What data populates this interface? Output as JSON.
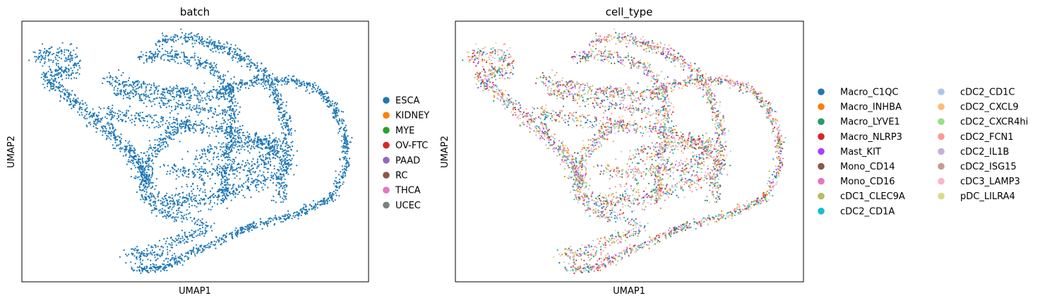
{
  "chart_data": [
    {
      "type": "scatter",
      "title": "batch",
      "xlabel": "UMAP1",
      "ylabel": "UMAP2",
      "grid": false,
      "ticks": false,
      "legend_position": "right",
      "legend": [
        {
          "label": "ESCA",
          "color": "#1f77b4"
        },
        {
          "label": "KIDNEY",
          "color": "#ff7f0e"
        },
        {
          "label": "MYE",
          "color": "#2ca02c"
        },
        {
          "label": "OV-FTC",
          "color": "#d62728"
        },
        {
          "label": "PAAD",
          "color": "#9467bd"
        },
        {
          "label": "RC",
          "color": "#8c564b"
        },
        {
          "label": "THCA",
          "color": "#e377c2"
        },
        {
          "label": "UCEC",
          "color": "#7f7f7f"
        }
      ],
      "visible_color": "#1f77b4"
    },
    {
      "type": "scatter",
      "title": "cell_type",
      "xlabel": "UMAP1",
      "ylabel": "UMAP2",
      "grid": false,
      "ticks": false,
      "legend_position": "right",
      "legend": [
        {
          "label": "Macro_C1QC",
          "color": "#1f77b4"
        },
        {
          "label": "Macro_INHBA",
          "color": "#ff7f0e"
        },
        {
          "label": "Macro_LYVE1",
          "color": "#279e68"
        },
        {
          "label": "Macro_NLRP3",
          "color": "#d62728"
        },
        {
          "label": "Mast_KIT",
          "color": "#aa40fc"
        },
        {
          "label": "Mono_CD14",
          "color": "#8c564b"
        },
        {
          "label": "Mono_CD16",
          "color": "#e377c2"
        },
        {
          "label": "cDC1_CLEC9A",
          "color": "#b5bd61"
        },
        {
          "label": "cDC2_CD1A",
          "color": "#17becf"
        },
        {
          "label": "cDC2_CD1C",
          "color": "#aec7e8"
        },
        {
          "label": "cDC2_CXCL9",
          "color": "#ffbb78"
        },
        {
          "label": "cDC2_CXCR4hi",
          "color": "#98df8a"
        },
        {
          "label": "cDC2_FCN1",
          "color": "#ff9896"
        },
        {
          "label": "cDC2_IL1B",
          "color": "#c5b0d5"
        },
        {
          "label": "cDC2_ISG15",
          "color": "#c49c94"
        },
        {
          "label": "cDC3_LAMP3",
          "color": "#f7b6d2"
        },
        {
          "label": "pDC_LILRA4",
          "color": "#dbdb8d"
        }
      ]
    }
  ]
}
